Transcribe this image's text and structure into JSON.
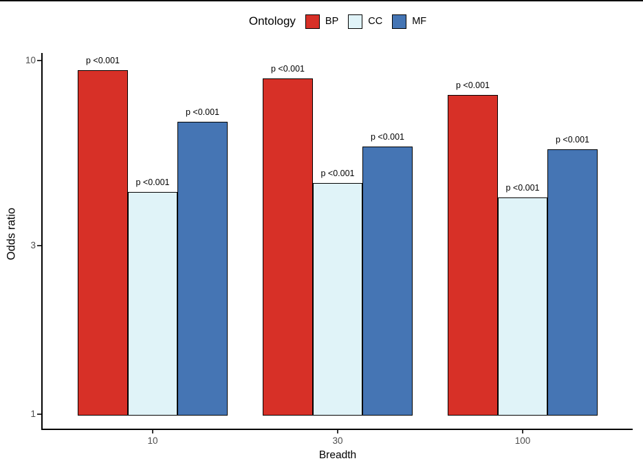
{
  "legend": {
    "title": "Ontology",
    "items": [
      {
        "label": "BP",
        "color": "#D73027"
      },
      {
        "label": "CC",
        "color": "#E0F3F8"
      },
      {
        "label": "MF",
        "color": "#4575B4"
      }
    ]
  },
  "chart_data": {
    "type": "bar",
    "title": "",
    "xlabel": "Breadth",
    "ylabel": "Odds ratio",
    "x_scale": "discrete",
    "y_scale": "log10",
    "ylim": [
      1,
      10.5
    ],
    "y_ticks": [
      1,
      3,
      10
    ],
    "y_tick_labels": [
      "1",
      "3",
      "10"
    ],
    "grid": "off",
    "legend_position": "top",
    "categories": [
      "10",
      "30",
      "100"
    ],
    "series": [
      {
        "name": "BP",
        "color": "#D73027",
        "values": [
          9.4,
          8.9,
          8.0
        ],
        "labels": [
          "p <0.001",
          "p <0.001",
          "p <0.001"
        ]
      },
      {
        "name": "CC",
        "color": "#E0F3F8",
        "values": [
          4.25,
          4.5,
          4.1
        ],
        "labels": [
          "p <0.001",
          "p <0.001",
          "p <0.001"
        ]
      },
      {
        "name": "MF",
        "color": "#4575B4",
        "values": [
          6.7,
          5.7,
          5.6
        ],
        "labels": [
          "p <0.001",
          "p <0.001",
          "p <0.001"
        ]
      }
    ]
  }
}
